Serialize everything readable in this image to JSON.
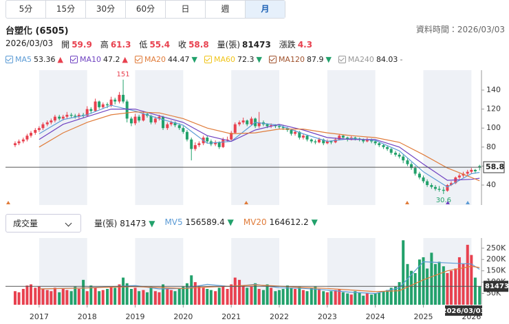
{
  "tabs": {
    "items": [
      "5分",
      "15分",
      "30分",
      "60分",
      "日",
      "週",
      "月"
    ],
    "active": 6
  },
  "header": {
    "title": "台塑化 (6505)",
    "updated": "資料時間：2026/03/03"
  },
  "quote": {
    "date": "2026/03/03",
    "items": [
      {
        "label": "開",
        "value": 59.9,
        "color": "#e8414f"
      },
      {
        "label": "高",
        "value": 61.3,
        "color": "#e8414f"
      },
      {
        "label": "低",
        "value": 55.4,
        "color": "#e8414f"
      },
      {
        "label": "收",
        "value": 58.8,
        "color": "#e8414f"
      },
      {
        "label": "量(張)",
        "value": 81473,
        "color": "#222"
      },
      {
        "label": "漲跌",
        "value": 4.3,
        "color": "#e8414f"
      }
    ]
  },
  "ma_legend": [
    {
      "name": "MA5",
      "value": 53.36,
      "arrow": "▲",
      "color": "#5b9bd5",
      "arrow_color": "#e8414f"
    },
    {
      "name": "MA10",
      "value": 47.2,
      "arrow": "▲",
      "color": "#6f42c1",
      "arrow_color": "#e8414f"
    },
    {
      "name": "MA20",
      "value": 44.47,
      "arrow": "▼",
      "color": "#e07b39",
      "arrow_color": "#22a16b"
    },
    {
      "name": "MA60",
      "value": 72.3,
      "arrow": "▼",
      "color": "#f0c419",
      "arrow_color": "#22a16b"
    },
    {
      "name": "MA120",
      "value": 87.9,
      "arrow": "▼",
      "color": "#a0522d",
      "arrow_color": "#22a16b"
    },
    {
      "name": "MA240",
      "value": 84.03,
      "arrow": "-",
      "color": "#999999",
      "arrow_color": "#666"
    }
  ],
  "chart_data": [
    {
      "type": "candlestick",
      "up_color": "#e8414f",
      "down_color": "#22a16b",
      "xlim": [
        2016.3,
        2026.21
      ],
      "ylim": [
        19,
        161
      ],
      "yticks": [
        40,
        60,
        80,
        100,
        120,
        140
      ],
      "x": [
        2016.5,
        2016.58,
        2016.67,
        2016.75,
        2016.83,
        2016.92,
        2017,
        2017.08,
        2017.17,
        2017.25,
        2017.33,
        2017.42,
        2017.5,
        2017.58,
        2017.67,
        2017.75,
        2017.83,
        2017.92,
        2018,
        2018.08,
        2018.17,
        2018.25,
        2018.33,
        2018.42,
        2018.5,
        2018.58,
        2018.67,
        2018.75,
        2018.83,
        2018.92,
        2019,
        2019.08,
        2019.17,
        2019.25,
        2019.33,
        2019.42,
        2019.5,
        2019.58,
        2019.67,
        2019.75,
        2019.83,
        2019.92,
        2020,
        2020.08,
        2020.17,
        2020.25,
        2020.33,
        2020.42,
        2020.5,
        2020.58,
        2020.67,
        2020.75,
        2020.83,
        2020.92,
        2021,
        2021.08,
        2021.17,
        2021.25,
        2021.33,
        2021.42,
        2021.5,
        2021.58,
        2021.67,
        2021.75,
        2021.83,
        2021.92,
        2022,
        2022.08,
        2022.17,
        2022.25,
        2022.33,
        2022.42,
        2022.5,
        2022.58,
        2022.67,
        2022.75,
        2022.83,
        2022.92,
        2023,
        2023.08,
        2023.17,
        2023.25,
        2023.33,
        2023.42,
        2023.5,
        2023.58,
        2023.67,
        2023.75,
        2023.83,
        2023.92,
        2024,
        2024.08,
        2024.17,
        2024.25,
        2024.33,
        2024.42,
        2024.5,
        2024.58,
        2024.67,
        2024.75,
        2024.83,
        2024.92,
        2025,
        2025.08,
        2025.17,
        2025.25,
        2025.33,
        2025.42,
        2025.5,
        2025.58,
        2025.67,
        2025.75,
        2025.83,
        2025.92,
        2026,
        2026.08,
        2026.17
      ],
      "candles": [
        [
          82,
          86,
          80,
          84
        ],
        [
          84,
          88,
          82,
          86
        ],
        [
          86,
          90,
          84,
          88
        ],
        [
          88,
          94,
          86,
          92
        ],
        [
          92,
          97,
          90,
          95
        ],
        [
          95,
          100,
          93,
          98
        ],
        [
          98,
          102,
          96,
          100
        ],
        [
          100,
          106,
          98,
          104
        ],
        [
          104,
          108,
          102,
          106
        ],
        [
          106,
          110,
          104,
          108
        ],
        [
          108,
          114,
          106,
          112
        ],
        [
          112,
          114,
          108,
          110
        ],
        [
          110,
          114,
          108,
          112
        ],
        [
          112,
          117,
          110,
          114
        ],
        [
          114,
          116,
          111,
          113
        ],
        [
          113,
          115,
          110,
          112
        ],
        [
          112,
          116,
          110,
          114
        ],
        [
          114,
          116,
          111,
          113
        ],
        [
          113,
          123,
          112,
          120
        ],
        [
          120,
          122,
          115,
          118
        ],
        [
          118,
          131,
          117,
          128
        ],
        [
          128,
          129,
          120,
          122
        ],
        [
          122,
          127,
          120,
          125
        ],
        [
          125,
          127,
          121,
          124
        ],
        [
          124,
          133,
          122,
          130
        ],
        [
          130,
          132,
          125,
          128
        ],
        [
          128,
          138,
          126,
          135
        ],
        [
          135,
          151,
          126,
          128
        ],
        [
          128,
          130,
          106,
          110
        ],
        [
          110,
          112,
          102,
          105
        ],
        [
          105,
          115,
          103,
          112
        ],
        [
          112,
          114,
          106,
          108
        ],
        [
          108,
          118,
          107,
          115
        ],
        [
          115,
          117,
          111,
          113
        ],
        [
          113,
          114,
          104,
          106
        ],
        [
          106,
          112,
          104,
          110
        ],
        [
          110,
          114,
          108,
          112
        ],
        [
          112,
          113,
          98,
          100
        ],
        [
          100,
          106,
          98,
          104
        ],
        [
          104,
          108,
          102,
          106
        ],
        [
          106,
          107,
          101,
          103
        ],
        [
          103,
          105,
          98,
          100
        ],
        [
          100,
          102,
          94,
          96
        ],
        [
          96,
          98,
          86,
          88
        ],
        [
          88,
          90,
          66,
          78
        ],
        [
          78,
          85,
          76,
          82
        ],
        [
          82,
          86,
          80,
          84
        ],
        [
          84,
          92,
          82,
          90
        ],
        [
          90,
          92,
          84,
          86
        ],
        [
          86,
          88,
          81,
          83
        ],
        [
          83,
          87,
          81,
          85
        ],
        [
          85,
          86,
          78,
          80
        ],
        [
          80,
          90,
          79,
          88
        ],
        [
          88,
          91,
          86,
          88
        ],
        [
          88,
          97,
          87,
          95
        ],
        [
          95,
          106,
          94,
          104
        ],
        [
          104,
          108,
          102,
          106
        ],
        [
          106,
          111,
          104,
          108
        ],
        [
          108,
          109,
          102,
          104
        ],
        [
          104,
          112,
          103,
          110
        ],
        [
          110,
          111,
          100,
          102
        ],
        [
          102,
          117,
          100,
          106
        ],
        [
          106,
          108,
          102,
          104
        ],
        [
          104,
          105,
          100,
          102
        ],
        [
          102,
          105,
          100,
          103
        ],
        [
          103,
          104,
          100,
          102
        ],
        [
          102,
          104,
          99,
          101
        ],
        [
          101,
          103,
          98,
          100
        ],
        [
          100,
          101,
          96,
          98
        ],
        [
          98,
          99,
          92,
          94
        ],
        [
          94,
          98,
          92,
          96
        ],
        [
          96,
          97,
          88,
          90
        ],
        [
          90,
          94,
          88,
          92
        ],
        [
          92,
          93,
          86,
          88
        ],
        [
          88,
          89,
          84,
          86
        ],
        [
          86,
          88,
          83,
          85
        ],
        [
          85,
          90,
          84,
          88
        ],
        [
          88,
          89,
          82,
          84
        ],
        [
          84,
          88,
          83,
          86
        ],
        [
          86,
          87,
          83,
          85
        ],
        [
          85,
          90,
          84,
          88
        ],
        [
          88,
          94,
          87,
          92
        ],
        [
          92,
          93,
          88,
          90
        ],
        [
          90,
          91,
          86,
          88
        ],
        [
          88,
          92,
          87,
          90
        ],
        [
          90,
          91,
          87,
          89
        ],
        [
          89,
          90,
          86,
          88
        ],
        [
          88,
          89,
          84,
          86
        ],
        [
          86,
          90,
          85,
          88
        ],
        [
          88,
          89,
          84,
          86
        ],
        [
          86,
          87,
          82,
          84
        ],
        [
          84,
          85,
          80,
          82
        ],
        [
          82,
          83,
          78,
          80
        ],
        [
          80,
          81,
          76,
          78
        ],
        [
          78,
          79,
          72,
          74
        ],
        [
          74,
          76,
          70,
          72
        ],
        [
          72,
          74,
          68,
          70
        ],
        [
          70,
          72,
          63,
          66
        ],
        [
          66,
          68,
          60,
          62
        ],
        [
          62,
          64,
          56,
          58
        ],
        [
          58,
          60,
          50,
          52
        ],
        [
          52,
          54,
          46,
          48
        ],
        [
          48,
          50,
          42,
          44
        ],
        [
          44,
          46,
          38,
          40
        ],
        [
          40,
          42,
          36,
          38
        ],
        [
          38,
          40,
          34,
          36
        ],
        [
          36,
          39,
          33,
          35
        ],
        [
          35,
          38,
          30.6,
          34
        ],
        [
          34,
          41,
          33,
          40
        ],
        [
          40,
          44,
          39,
          42
        ],
        [
          42,
          49,
          41,
          48
        ],
        [
          48,
          52,
          46,
          50
        ],
        [
          50,
          54,
          48,
          52
        ],
        [
          52,
          56,
          50,
          54
        ],
        [
          54,
          58,
          52,
          56
        ],
        [
          56,
          57,
          52,
          54.5
        ],
        [
          59.9,
          61.3,
          55.4,
          58.8
        ]
      ],
      "ma_x": [
        2017,
        2017.5,
        2018,
        2018.5,
        2019,
        2019.5,
        2020,
        2020.5,
        2021,
        2021.5,
        2022,
        2022.5,
        2023,
        2023.5,
        2024,
        2024.5,
        2025,
        2025.5,
        2026,
        2026.17
      ],
      "lines": [
        {
          "color": "#5b9bd5",
          "values": [
            94,
            109,
            114,
            124,
            118,
            110,
            103,
            84,
            86,
            106,
            103,
            94,
            86,
            89,
            87,
            76,
            54,
            38,
            52,
            53.36
          ]
        },
        {
          "color": "#6f42c1",
          "values": [
            88,
            104,
            112,
            120,
            120,
            113,
            106,
            92,
            86,
            98,
            104,
            98,
            90,
            88,
            88,
            80,
            62,
            45,
            46,
            47.2
          ]
        },
        {
          "color": "#e07b39",
          "values": [
            80,
            95,
            106,
            114,
            117,
            116,
            110,
            100,
            94,
            95,
            99,
            99,
            95,
            92,
            90,
            85,
            72,
            58,
            48,
            44.47
          ]
        }
      ]
    },
    {
      "type": "bar",
      "selector": "成交量",
      "legend": [
        {
          "name": "量(張)",
          "value": 81473,
          "arrow": "▼",
          "color": "#222",
          "arrow_color": "#22a16b"
        },
        {
          "name": "MV5",
          "value": 156589.4,
          "arrow": "▼",
          "color": "#5b9bd5",
          "arrow_color": "#22a16b"
        },
        {
          "name": "MV20",
          "value": 164612.2,
          "arrow": "▼",
          "color": "#e07b39",
          "arrow_color": "#22a16b"
        }
      ],
      "xlim": [
        2016.3,
        2026.21
      ],
      "xticks": [
        2017,
        2018,
        2019,
        2020,
        2021,
        2022,
        2023,
        2024,
        2025,
        2026
      ],
      "ylim": [
        0,
        295000
      ],
      "yticks": [
        {
          "value": 50000,
          "label": "50K"
        },
        {
          "value": 100000,
          "label": "100K"
        },
        {
          "value": 150000,
          "label": "150K"
        },
        {
          "value": 200000,
          "label": "200K"
        },
        {
          "value": 250000,
          "label": "250K"
        }
      ],
      "values": [
        60000,
        55000,
        70000,
        85000,
        90000,
        75000,
        80000,
        70000,
        65000,
        60000,
        75000,
        55000,
        70000,
        65000,
        60000,
        80000,
        70000,
        110000,
        60000,
        85000,
        75000,
        60000,
        65000,
        70000,
        80000,
        75000,
        90000,
        120000,
        95000,
        70000,
        75000,
        60000,
        65000,
        55000,
        80000,
        60000,
        55000,
        90000,
        70000,
        65000,
        60000,
        70000,
        80000,
        95000,
        130000,
        100000,
        80000,
        75000,
        70000,
        65000,
        60000,
        75000,
        85000,
        70000,
        90000,
        120000,
        110000,
        85000,
        75000,
        80000,
        95000,
        70000,
        65000,
        90000,
        75000,
        60000,
        65000,
        70000,
        85000,
        75000,
        70000,
        80000,
        65000,
        60000,
        75000,
        80000,
        70000,
        60000,
        55000,
        60000,
        65000,
        70000,
        55000,
        50000,
        45000,
        60000,
        55000,
        40000,
        50000,
        45000,
        50000,
        55000,
        60000,
        65000,
        75000,
        80000,
        100000,
        285000,
        180000,
        150000,
        140000,
        200000,
        210000,
        160000,
        230000,
        180000,
        190000,
        170000,
        140000,
        150000,
        160000,
        210000,
        180000,
        265000,
        220000,
        120000,
        81473
      ],
      "lines": [
        {
          "color": "#5b9bd5",
          "values": [
            70000,
            72000,
            75000,
            80000,
            85000,
            70000,
            72000,
            90000,
            80000,
            90000,
            75000,
            72000,
            65000,
            55000,
            50000,
            75000,
            190000,
            185000,
            180000,
            156589.4
          ]
        },
        {
          "color": "#e07b39",
          "values": [
            70000,
            72000,
            74000,
            78000,
            80000,
            76000,
            72000,
            78000,
            82000,
            88000,
            82000,
            76000,
            72000,
            65000,
            58000,
            62000,
            110000,
            150000,
            170000,
            164612.2
          ]
        }
      ]
    }
  ]
}
